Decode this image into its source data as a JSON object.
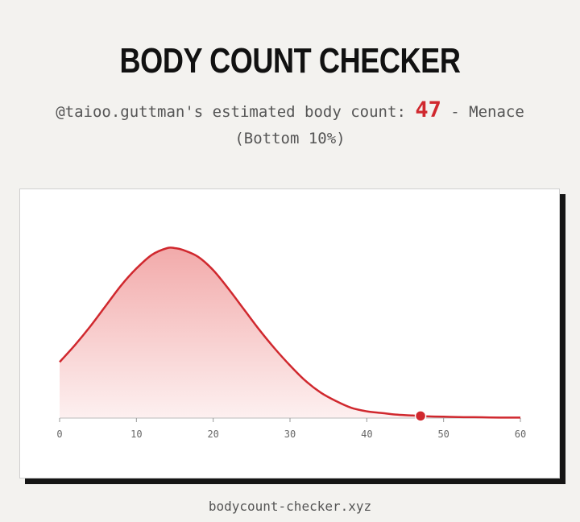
{
  "header": {
    "title": "BODY COUNT CHECKER"
  },
  "result": {
    "username": "@taioo.guttman",
    "phrase": "'s estimated body count: ",
    "count": "47",
    "separator": " - ",
    "verdict": "Menace",
    "percentile": "(Bottom 10%)"
  },
  "colors": {
    "accent": "#d0282e",
    "fill_top": "#f2aaaa",
    "fill_bottom": "#fdf0f0",
    "background": "#f3f2ef"
  },
  "chart_data": {
    "type": "area",
    "title": "",
    "xlabel": "",
    "ylabel": "",
    "xlim": [
      0,
      60
    ],
    "x_ticks": [
      "0",
      "10",
      "20",
      "30",
      "40",
      "50",
      "60"
    ],
    "series": [
      {
        "x": [
          0,
          2,
          4,
          6,
          8,
          10,
          12,
          14,
          15,
          16,
          18,
          20,
          22,
          24,
          26,
          28,
          30,
          32,
          34,
          36,
          38,
          40,
          42,
          44,
          46,
          48,
          50,
          52,
          54,
          56,
          58,
          60
        ],
        "y": [
          0.33,
          0.43,
          0.54,
          0.66,
          0.78,
          0.88,
          0.96,
          1.0,
          1.0,
          0.99,
          0.95,
          0.87,
          0.76,
          0.64,
          0.52,
          0.41,
          0.31,
          0.22,
          0.15,
          0.1,
          0.06,
          0.04,
          0.03,
          0.02,
          0.015,
          0.01,
          0.008,
          0.006,
          0.005,
          0.004,
          0.003,
          0.003
        ]
      }
    ],
    "marker": {
      "x": 47
    },
    "grid": false,
    "legend": "none"
  },
  "footer": {
    "site": "bodycount-checker.xyz"
  }
}
